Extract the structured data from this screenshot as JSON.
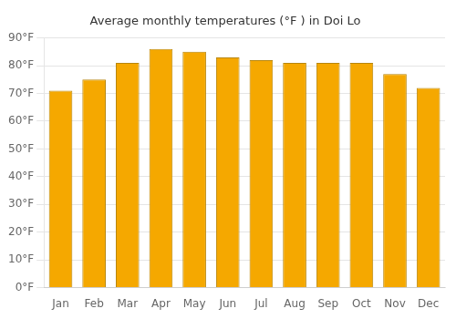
{
  "chart_data": {
    "type": "bar",
    "title": "Average monthly temperatures (°F ) in Doi Lo",
    "categories": [
      "Jan",
      "Feb",
      "Mar",
      "Apr",
      "May",
      "Jun",
      "Jul",
      "Aug",
      "Sep",
      "Oct",
      "Nov",
      "Dec"
    ],
    "values": [
      71,
      75,
      81,
      86,
      85,
      83,
      82,
      81,
      81,
      81,
      77,
      72
    ],
    "color": "#F5A800",
    "ylim": [
      0,
      90
    ],
    "yticks": [
      {
        "value": 0,
        "label": "0°F"
      },
      {
        "value": 10,
        "label": "10°F"
      },
      {
        "value": 20,
        "label": "20°F"
      },
      {
        "value": 30,
        "label": "30°F"
      },
      {
        "value": 40,
        "label": "40°F"
      },
      {
        "value": 50,
        "label": "50°F"
      },
      {
        "value": 60,
        "label": "60°F"
      },
      {
        "value": 70,
        "label": "70°F"
      },
      {
        "value": 80,
        "label": "80°F"
      },
      {
        "value": 90,
        "label": "90°F"
      }
    ],
    "grid": true
  }
}
